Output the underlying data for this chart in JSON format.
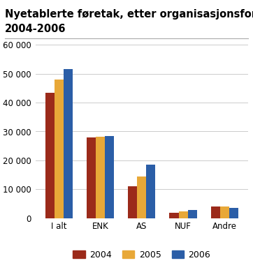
{
  "title_line1": "Nyetablerte føretak, etter organisasjonsform og år.",
  "title_line2": "2004-2006",
  "categories": [
    "I alt",
    "ENK",
    "AS",
    "NUF",
    "Andre"
  ],
  "series": {
    "2004": [
      43500,
      28000,
      11000,
      1800,
      4000
    ],
    "2005": [
      48000,
      28300,
      14500,
      2500,
      4000
    ],
    "2006": [
      51500,
      28500,
      18500,
      2800,
      3500
    ]
  },
  "colors": {
    "2004": "#9B2A1A",
    "2005": "#E8A838",
    "2006": "#2B5EA7"
  },
  "ylim": [
    0,
    60000
  ],
  "yticks": [
    0,
    10000,
    20000,
    30000,
    40000,
    50000,
    60000
  ],
  "ytick_labels": [
    "0",
    "10 000",
    "20 000",
    "30 000",
    "40 000",
    "50 000",
    "60 000"
  ],
  "bar_width": 0.22,
  "title_fontsize": 10.5,
  "tick_fontsize": 8.5,
  "legend_fontsize": 9,
  "background_color": "#ffffff",
  "grid_color": "#cccccc"
}
